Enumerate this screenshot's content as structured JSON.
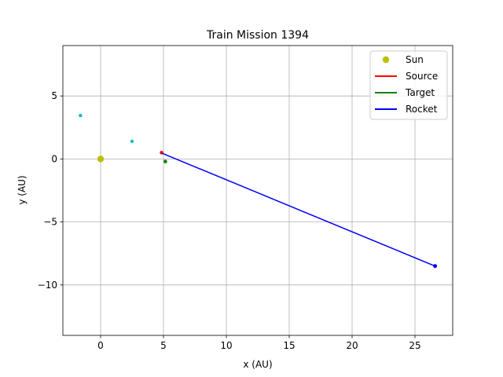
{
  "chart_data": {
    "type": "scatter",
    "title": "Train Mission 1394",
    "xlabel": "x (AU)",
    "ylabel": "y (AU)",
    "xlim": [
      -3,
      28
    ],
    "ylim": [
      -14,
      9
    ],
    "x_ticks": [
      0,
      5,
      10,
      15,
      20,
      25
    ],
    "y_ticks": [
      5,
      0,
      -5,
      -10
    ],
    "x_tick_labels": [
      "0",
      "5",
      "10",
      "15",
      "20",
      "25"
    ],
    "y_tick_labels": [
      "5",
      "0",
      "−5",
      "−10"
    ],
    "grid": true,
    "legend_position": "top-right",
    "legend": [
      {
        "label": "Sun",
        "kind": "marker",
        "color": "#bfbf00"
      },
      {
        "label": "Source",
        "kind": "line",
        "color": "#ff0000"
      },
      {
        "label": "Target",
        "kind": "line",
        "color": "#008000"
      },
      {
        "label": "Rocket",
        "kind": "line",
        "color": "#0000ff"
      }
    ],
    "series": [
      {
        "name": "Sun",
        "kind": "marker",
        "color": "#bfbf00",
        "points": [
          [
            0,
            0
          ]
        ]
      },
      {
        "name": "Source",
        "kind": "marker",
        "color": "#ff0000",
        "points": [
          [
            4.85,
            0.5
          ]
        ]
      },
      {
        "name": "Target",
        "kind": "marker",
        "color": "#008000",
        "points": [
          [
            5.15,
            -0.2
          ]
        ]
      },
      {
        "name": "Rocket",
        "kind": "line",
        "color": "#0000ff",
        "points": [
          [
            4.9,
            0.45
          ],
          [
            26.6,
            -8.5
          ]
        ]
      }
    ],
    "other_points": [
      {
        "color": "#00bfbf",
        "points": [
          [
            -1.6,
            3.45
          ],
          [
            2.5,
            1.4
          ]
        ]
      }
    ]
  }
}
